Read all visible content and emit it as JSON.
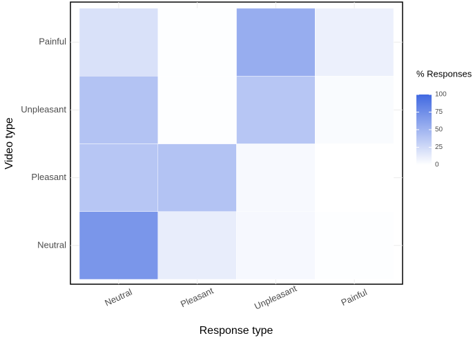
{
  "chart_data": {
    "type": "heatmap",
    "x_label": "Response type",
    "y_label": "Video type",
    "x_categories": [
      "Neutral",
      "Pleasant",
      "Unpleasant",
      "Painful"
    ],
    "y_categories": [
      "Neutral",
      "Pleasant",
      "Unpleasant",
      "Painful"
    ],
    "values": [
      [
        70,
        12,
        5,
        1
      ],
      [
        38,
        40,
        4,
        0
      ],
      [
        40,
        1,
        38,
        3
      ],
      [
        20,
        1,
        55,
        10
      ]
    ],
    "color_low": "#ffffff",
    "color_high": "#4169e1",
    "legend_title": "% Responses",
    "colorbar_lim": [
      0,
      100
    ],
    "colorbar_ticks": [
      0,
      25,
      50,
      75,
      100
    ]
  }
}
